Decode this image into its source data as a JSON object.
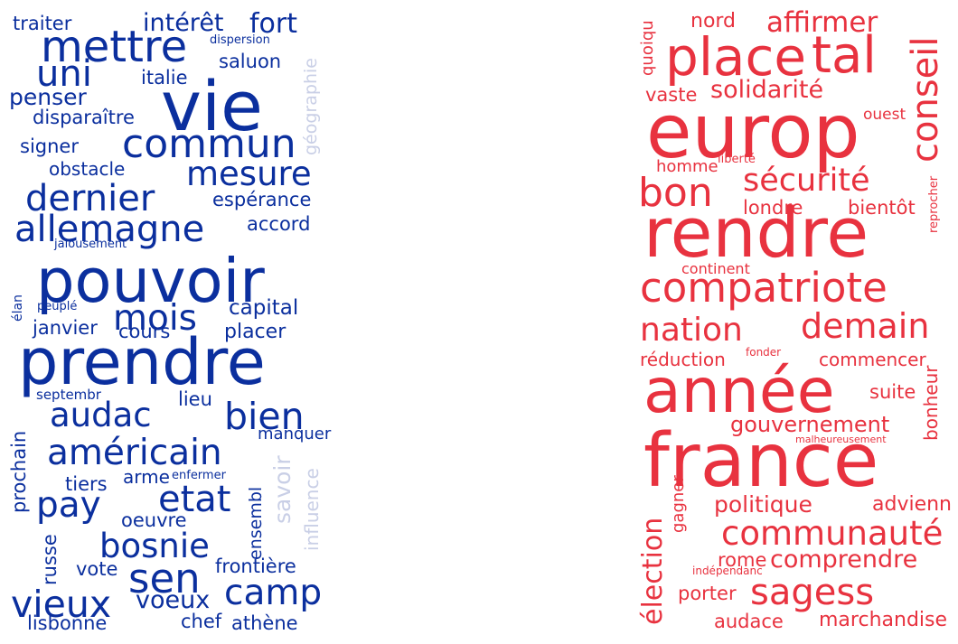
{
  "colors": {
    "blue": "#0b2f9e",
    "blue_light": "#c9cfe6",
    "red": "#e8323f",
    "red_light": "#f3a1a7"
  },
  "left_words": [
    "traiter",
    "dispersion",
    "intérêt",
    "fort",
    "mettre",
    "uni",
    "saluon",
    "italie",
    "géographie",
    "vie",
    "penser",
    "disparaître",
    "commun",
    "signer",
    "obstacle",
    "mesure",
    "dernier",
    "espérance",
    "allemagne",
    "accord",
    "jalousement",
    "pouvoir",
    "élan",
    "peuplé",
    "mois",
    "capital",
    "janvier",
    "cours",
    "placer",
    "prendre",
    "septembr",
    "lieu",
    "audac",
    "bien",
    "manquer",
    "prochain",
    "américain",
    "influence",
    "savoir",
    "arme",
    "enfermer",
    "tiers",
    "ensembl",
    "pay",
    "etat",
    "oeuvre",
    "bosnie",
    "russe",
    "sen",
    "vote",
    "frontière",
    "camp",
    "voeux",
    "vieux",
    "lisbonne",
    "chef",
    "athène"
  ],
  "right_words": [
    "quoiqu",
    "nord",
    "affirmer",
    "place",
    "tal",
    "vaste",
    "solidarité",
    "conseil",
    "europ",
    "ouest",
    "liberté",
    "homme",
    "bon",
    "sécurité",
    "reprocher",
    "londre",
    "bientôt",
    "rendre",
    "continent",
    "compatriote",
    "nation",
    "demain",
    "fonder",
    "réduction",
    "commencer",
    "année",
    "suite",
    "bonheur",
    "gouvernement",
    "malheureusement",
    "france",
    "gagner",
    "politique",
    "advienn",
    "communauté",
    "élection",
    "rome",
    "comprendre",
    "indépendanc",
    "sagess",
    "porter",
    "audace",
    "marchandise"
  ]
}
